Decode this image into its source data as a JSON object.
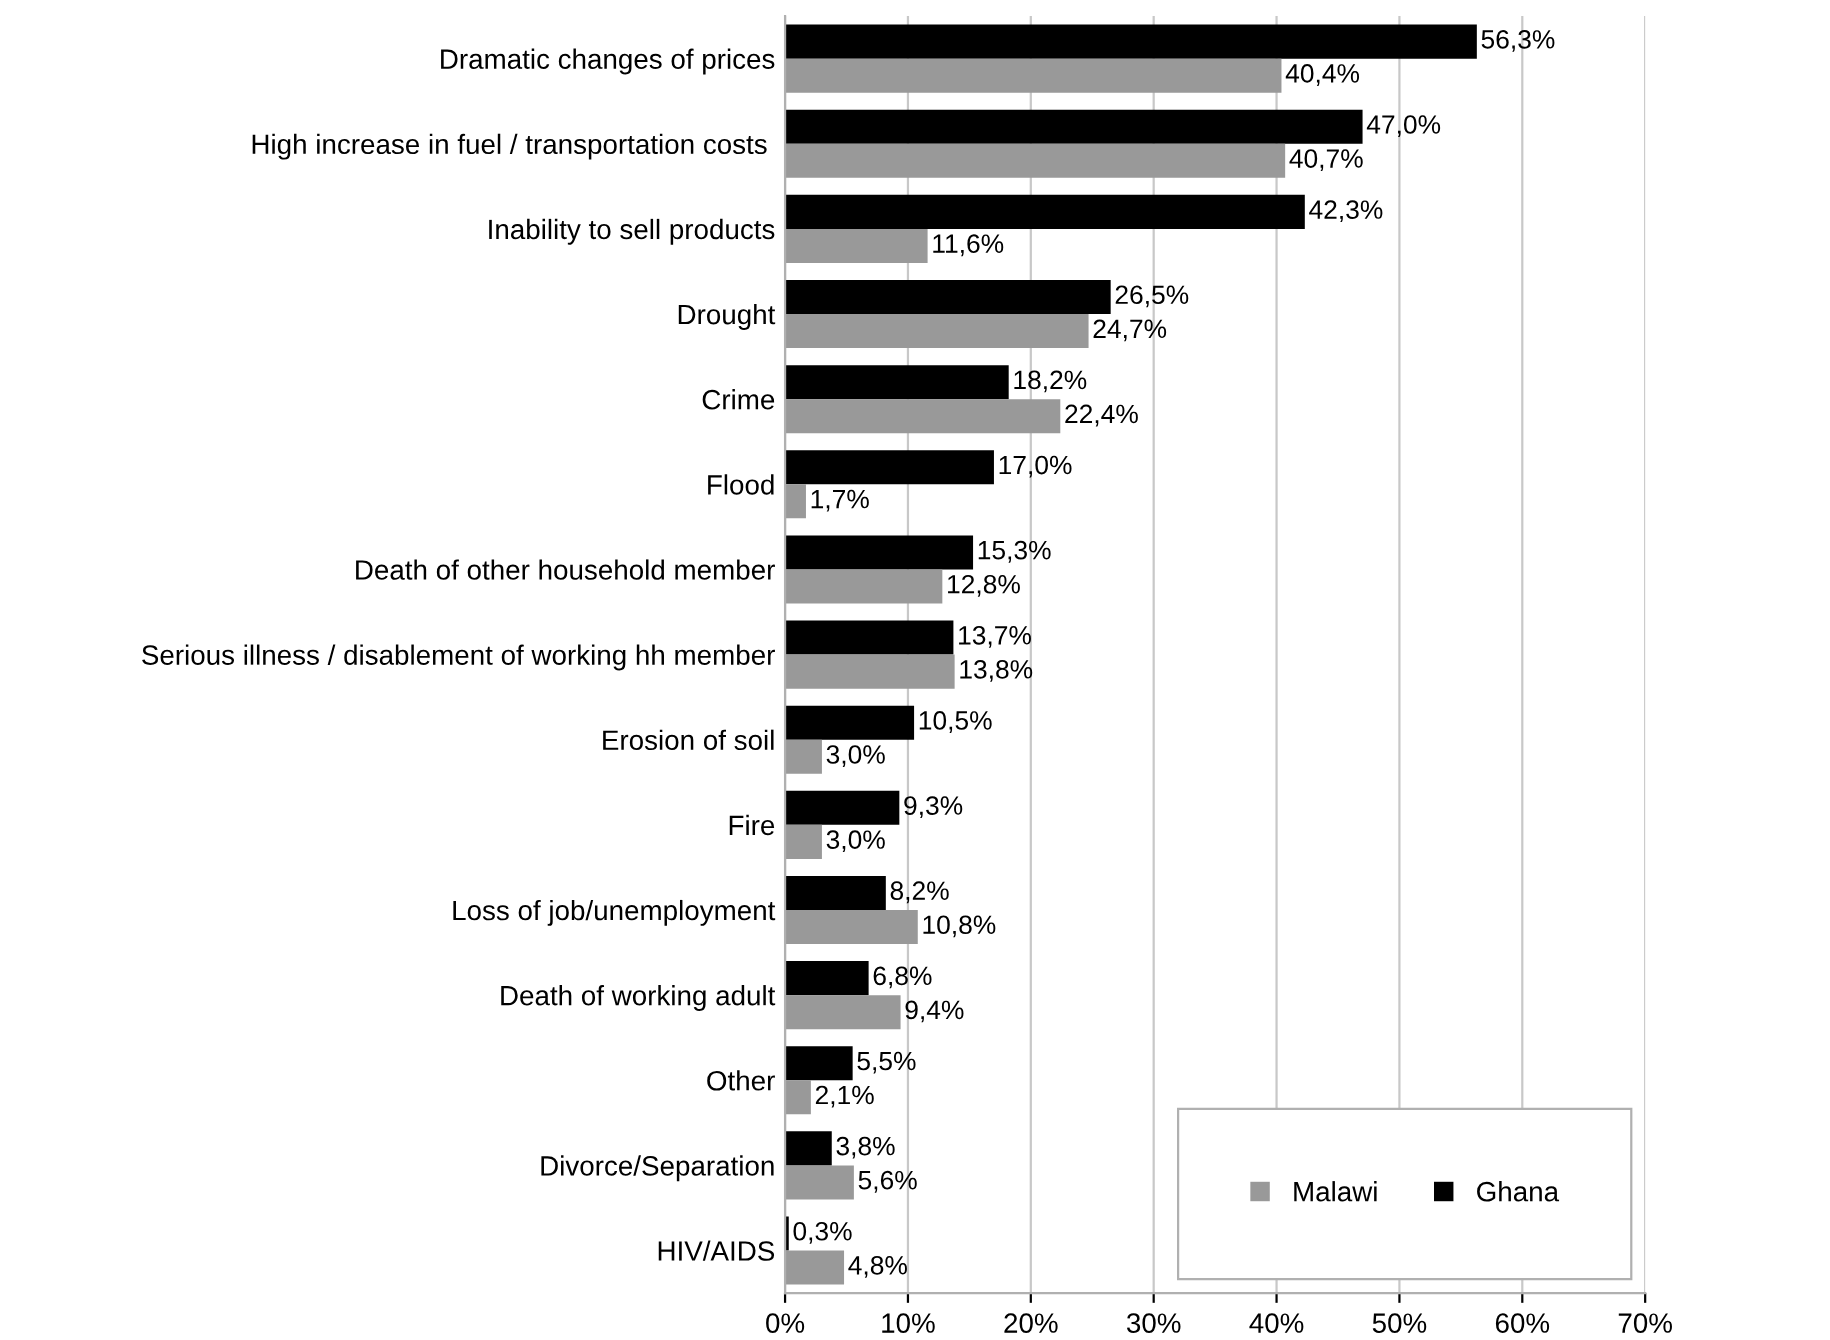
{
  "chart_data": {
    "type": "bar",
    "orientation": "horizontal",
    "categories": [
      "Dramatic changes of prices",
      "High increase in fuel / transportation costs ",
      "Inability to sell products",
      "Drought",
      "Crime",
      "Flood",
      "Death of other household member",
      "Serious illness / disablement of working hh member",
      "Erosion of soil",
      "Fire",
      "Loss of job/unemployment",
      "Death of working adult",
      "Other",
      "Divorce/Separation",
      "HIV/AIDS"
    ],
    "series": [
      {
        "name": "Ghana",
        "color": "#000000",
        "values": [
          56.3,
          47.0,
          42.3,
          26.5,
          18.2,
          17.0,
          15.3,
          13.7,
          10.5,
          9.3,
          8.2,
          6.8,
          5.5,
          3.8,
          0.3
        ],
        "value_labels": [
          "56,3%",
          "47,0%",
          "42,3%",
          "26,5%",
          "18,2%",
          "17,0%",
          "15,3%",
          "13,7%",
          "10,5%",
          "9,3%",
          "8,2%",
          "6,8%",
          "5,5%",
          "3,8%",
          "0,3%"
        ]
      },
      {
        "name": "Malawi",
        "color": "#999999",
        "values": [
          40.4,
          40.7,
          11.6,
          24.7,
          22.4,
          1.7,
          12.8,
          13.8,
          3.0,
          3.0,
          10.8,
          9.4,
          2.1,
          5.6,
          4.8
        ],
        "value_labels": [
          "40,4%",
          "40,7%",
          "11,6%",
          "24,7%",
          "22,4%",
          "1,7%",
          "12,8%",
          "13,8%",
          "3,0%",
          "3,0%",
          "10,8%",
          "9,4%",
          "2,1%",
          "5,6%",
          "4,8%"
        ]
      }
    ],
    "xlim": [
      0,
      70
    ],
    "xticks": [
      {
        "value": 0,
        "label": "0%"
      },
      {
        "value": 10,
        "label": "10%"
      },
      {
        "value": 20,
        "label": "20%"
      },
      {
        "value": 30,
        "label": "30%"
      },
      {
        "value": 40,
        "label": "40%"
      },
      {
        "value": 50,
        "label": "50%"
      },
      {
        "value": 60,
        "label": "60%"
      },
      {
        "value": 70,
        "label": "70%"
      }
    ],
    "grid": "x",
    "legend": "bottom right"
  }
}
